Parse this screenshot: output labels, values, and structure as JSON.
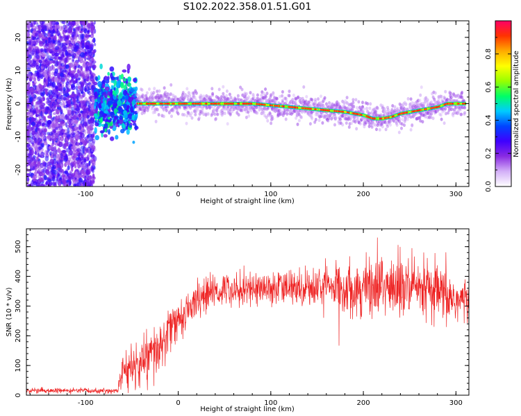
{
  "figure": {
    "title": "S102.2022.358.01.51.G01"
  },
  "chart_data": [
    {
      "type": "heatmap",
      "xlabel": "Height of straight line (km)",
      "ylabel": "Frequency (Hz)",
      "xlim": [
        -164,
        314
      ],
      "ylim": [
        -25,
        25
      ],
      "xticks": [
        "-100",
        "0",
        "100",
        "200",
        "300"
      ],
      "yticks": [
        "-20",
        "-10",
        "0",
        "10",
        "20"
      ],
      "colorbar": {
        "label": "Normalized spectral amplitude",
        "range": [
          0,
          1
        ],
        "ticks": [
          "0.0",
          "0.2",
          "0.4",
          "0.6",
          "0.8"
        ],
        "colors": [
          "#ffffff",
          "#d4b0f8",
          "#8a2be2",
          "#3f00ff",
          "#0044ff",
          "#00ccff",
          "#00ff66",
          "#99ff00",
          "#ffff00",
          "#ffaa00",
          "#ff3300",
          "#ff0066"
        ]
      },
      "noise_region_x": [
        -164,
        -90
      ],
      "turbulence_region_x": [
        -90,
        -45
      ],
      "doppler_trace": {
        "x": [
          -45,
          -30,
          -20,
          0,
          20,
          40,
          60,
          80,
          100,
          120,
          140,
          160,
          180,
          190,
          200,
          210,
          220,
          230,
          240,
          250,
          260,
          270,
          280,
          290,
          300,
          310
        ],
        "y": [
          0,
          0,
          0,
          0,
          0,
          0,
          0,
          0,
          -0.5,
          -1,
          -1.5,
          -2,
          -2.5,
          -3,
          -3.5,
          -4.5,
          -4.5,
          -4,
          -3,
          -2.5,
          -2,
          -1.5,
          -1,
          0,
          0,
          0
        ]
      }
    },
    {
      "type": "line",
      "xlabel": "Height of straight line (km)",
      "ylabel": "SNR (10 * v/v)",
      "xlim": [
        -164,
        314
      ],
      "ylim": [
        0,
        560
      ],
      "xticks": [
        "-100",
        "0",
        "100",
        "200",
        "300"
      ],
      "yticks": [
        "0",
        "100",
        "200",
        "300",
        "400",
        "500"
      ],
      "color": "#ee2222",
      "trend": {
        "x": [
          -164,
          -65,
          -62,
          -40,
          -20,
          -10,
          0,
          20,
          40,
          60,
          100,
          150,
          200,
          220,
          240,
          260,
          280,
          300,
          314
        ],
        "y": [
          15,
          15,
          70,
          110,
          150,
          220,
          250,
          320,
          350,
          360,
          360,
          365,
          360,
          370,
          360,
          350,
          340,
          320,
          315
        ]
      },
      "noise_amplitude": {
        "x": [
          -164,
          -65,
          -62,
          -20,
          0,
          50,
          150,
          200,
          240,
          270,
          314
        ],
        "y": [
          8,
          8,
          60,
          90,
          60,
          50,
          60,
          90,
          110,
          100,
          70
        ]
      },
      "samples": 1500
    }
  ]
}
